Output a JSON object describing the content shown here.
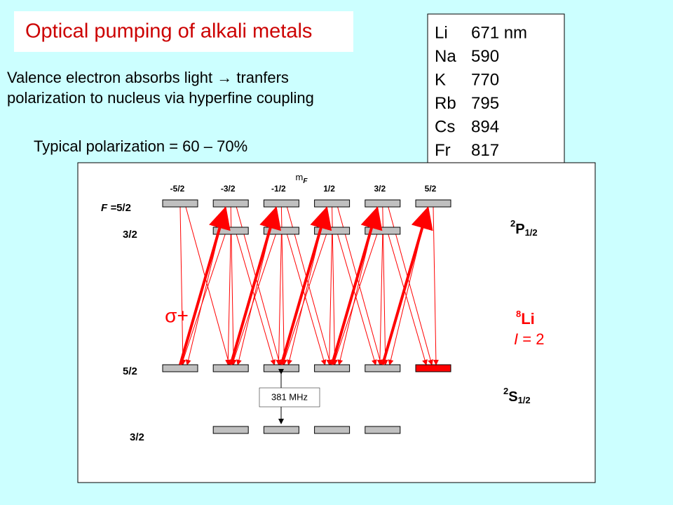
{
  "title": "Optical pumping of alkali metals",
  "intro": [
    "Valence electron absorbs light → tranfers",
    "polarization to nucleus via hyperfine coupling"
  ],
  "polarization": "Typical polarization = 60 – 70%",
  "wavelengths": [
    {
      "element": "Li",
      "value": "671 nm"
    },
    {
      "element": "Na",
      "value": "590"
    },
    {
      "element": "K",
      "value": "770"
    },
    {
      "element": "Rb",
      "value": "795"
    },
    {
      "element": "Cs",
      "value": "894"
    },
    {
      "element": "Fr",
      "value": "817"
    }
  ],
  "diagram": {
    "mf_symbol": "m",
    "mf_subscript": "F",
    "mf_values": [
      "-5/2",
      "-3/2",
      "-1/2",
      "1/2",
      "3/2",
      "5/2"
    ],
    "upper_f_prefix": "F =",
    "upper_f": [
      "5/2",
      "3/2"
    ],
    "lower_f": [
      "5/2",
      "3/2"
    ],
    "upper_state": {
      "sup": "2",
      "term": "P",
      "sub": "1/2"
    },
    "lower_state": {
      "sup": "2",
      "term": "S",
      "sub": "1/2"
    },
    "isotope": {
      "mass": "8",
      "symbol": "Li"
    },
    "spin": {
      "symbol": "I",
      "value": " = 2"
    },
    "splitting": "381 MHz",
    "transition": "σ+"
  }
}
